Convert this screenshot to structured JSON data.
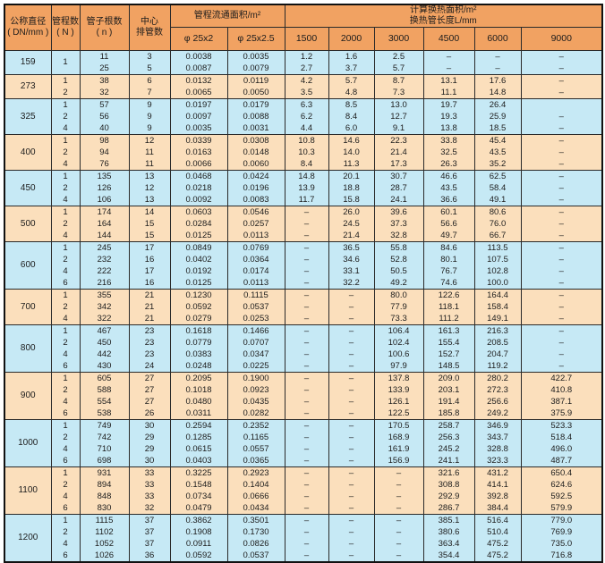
{
  "colors": {
    "header_bg": "#f1a262",
    "row_blue": "#c6e9f5",
    "row_peach": "#fbdfbc",
    "grid_line": "#2a2a2a",
    "text": "#1c1c1c",
    "page_bg": "#ffffff"
  },
  "table": {
    "header": {
      "diameter_line1": "公称直径",
      "diameter_line2": "( DN/mm )",
      "passes_line1": "管程数",
      "passes_line2": "( N )",
      "tubes_line1": "管子根数",
      "tubes_line2": "( n )",
      "center_line1": "中心",
      "center_line2": "排管数",
      "flow_area_title": "管程流通面积/m²",
      "flow_area_cols": [
        "φ 25x2",
        "φ 25x2.5"
      ],
      "heat_area_line1": "计算换热面积/m²",
      "heat_area_line2": "换热管长度L/mm",
      "lengths": [
        "1500",
        "2000",
        "3000",
        "4500",
        "6000",
        "9000"
      ]
    },
    "groups": [
      {
        "dn": "159",
        "tone": "blue",
        "pass_rowspan": 2,
        "rows": [
          [
            "1",
            "11",
            "3",
            "0.0038",
            "0.0035",
            "1.2",
            "1.6",
            "2.5",
            "–",
            "–",
            "–"
          ],
          [
            null,
            "25",
            "5",
            "0.0087",
            "0.0079",
            "2.7",
            "3.7",
            "5.7",
            "–",
            "–",
            "–"
          ]
        ]
      },
      {
        "dn": "273",
        "tone": "peach",
        "rows": [
          [
            "1",
            "38",
            "6",
            "0.0132",
            "0.0119",
            "4.2",
            "5.7",
            "8.7",
            "13.1",
            "17.6",
            "–"
          ],
          [
            "2",
            "32",
            "7",
            "0.0065",
            "0.0050",
            "3.5",
            "4.8",
            "7.3",
            "11.1",
            "14.8",
            "–"
          ]
        ]
      },
      {
        "dn": "325",
        "tone": "blue",
        "rows": [
          [
            "1",
            "57",
            "9",
            "0.0197",
            "0.0179",
            "6.3",
            "8.5",
            "13.0",
            "19.7",
            "26.4",
            ""
          ],
          [
            "2",
            "56",
            "9",
            "0.0097",
            "0.0088",
            "6.2",
            "8.4",
            "12.7",
            "19.3",
            "25.9",
            "–"
          ],
          [
            "4",
            "40",
            "9",
            "0.0035",
            "0.0031",
            "4.4",
            "6.0",
            "9.1",
            "13.8",
            "18.5",
            "–"
          ]
        ]
      },
      {
        "dn": "400",
        "tone": "peach",
        "rows": [
          [
            "1",
            "98",
            "12",
            "0.0339",
            "0.0308",
            "10.8",
            "14.6",
            "22.3",
            "33.8",
            "45.4",
            "–"
          ],
          [
            "2",
            "94",
            "11",
            "0.0163",
            "0.0148",
            "10.3",
            "14.0",
            "21.4",
            "32.5",
            "43.5",
            "–"
          ],
          [
            "4",
            "76",
            "11",
            "0.0066",
            "0.0060",
            "8.4",
            "11.3",
            "17.3",
            "26.3",
            "35.2",
            "–"
          ]
        ]
      },
      {
        "dn": "450",
        "tone": "blue",
        "rows": [
          [
            "1",
            "135",
            "13",
            "0.0468",
            "0.0424",
            "14.8",
            "20.1",
            "30.7",
            "46.6",
            "62.5",
            "–"
          ],
          [
            "2",
            "126",
            "12",
            "0.0218",
            "0.0196",
            "13.9",
            "18.8",
            "28.7",
            "43.5",
            "58.4",
            "–"
          ],
          [
            "4",
            "106",
            "13",
            "0.0092",
            "0.0083",
            "11.7",
            "15.8",
            "24.1",
            "36.6",
            "49.1",
            "–"
          ]
        ]
      },
      {
        "dn": "500",
        "tone": "peach",
        "rows": [
          [
            "1",
            "174",
            "14",
            "0.0603",
            "0.0546",
            "–",
            "26.0",
            "39.6",
            "60.1",
            "80.6",
            "–"
          ],
          [
            "2",
            "164",
            "15",
            "0.0284",
            "0.0257",
            "–",
            "24.5",
            "37.3",
            "56.6",
            "76.0",
            "–"
          ],
          [
            "4",
            "144",
            "15",
            "0.0125",
            "0.0113",
            "–",
            "21.4",
            "32.8",
            "49.7",
            "66.7",
            "–"
          ]
        ]
      },
      {
        "dn": "600",
        "tone": "blue",
        "rows": [
          [
            "1",
            "245",
            "17",
            "0.0849",
            "0.0769",
            "–",
            "36.5",
            "55.8",
            "84.6",
            "113.5",
            "–"
          ],
          [
            "2",
            "232",
            "16",
            "0.0402",
            "0.0364",
            "–",
            "34.6",
            "52.8",
            "80.1",
            "107.5",
            "–"
          ],
          [
            "4",
            "222",
            "17",
            "0.0192",
            "0.0174",
            "–",
            "33.1",
            "50.5",
            "76.7",
            "102.8",
            "–"
          ],
          [
            "6",
            "216",
            "16",
            "0.0125",
            "0.0113",
            "–",
            "32.2",
            "49.2",
            "74.6",
            "100.0",
            "–"
          ]
        ]
      },
      {
        "dn": "700",
        "tone": "peach",
        "rows": [
          [
            "1",
            "355",
            "21",
            "0.1230",
            "0.1115",
            "–",
            "–",
            "80.0",
            "122.6",
            "164.4",
            "–"
          ],
          [
            "2",
            "342",
            "21",
            "0.0592",
            "0.0537",
            "–",
            "–",
            "77.9",
            "118.1",
            "158.4",
            "–"
          ],
          [
            "4",
            "322",
            "21",
            "0.0279",
            "0.0253",
            "–",
            "–",
            "73.3",
            "111.2",
            "149.1",
            "–"
          ]
        ]
      },
      {
        "dn": "800",
        "tone": "blue",
        "rows": [
          [
            "1",
            "467",
            "23",
            "0.1618",
            "0.1466",
            "–",
            "–",
            "106.4",
            "161.3",
            "216.3",
            "–"
          ],
          [
            "2",
            "450",
            "23",
            "0.0779",
            "0.0707",
            "–",
            "–",
            "102.4",
            "155.4",
            "208.5",
            "–"
          ],
          [
            "4",
            "442",
            "23",
            "0.0383",
            "0.0347",
            "–",
            "–",
            "100.6",
            "152.7",
            "204.7",
            "–"
          ],
          [
            "6",
            "430",
            "24",
            "0.0248",
            "0.0225",
            "–",
            "–",
            "97.9",
            "148.5",
            "119.2",
            "–"
          ]
        ]
      },
      {
        "dn": "900",
        "tone": "peach",
        "rows": [
          [
            "1",
            "605",
            "27",
            "0.2095",
            "0.1900",
            "–",
            "–",
            "137.8",
            "209.0",
            "280.2",
            "422.7"
          ],
          [
            "2",
            "588",
            "27",
            "0.1018",
            "0.0923",
            "–",
            "–",
            "133.9",
            "203.1",
            "272.3",
            "410.8"
          ],
          [
            "4",
            "554",
            "27",
            "0.0480",
            "0.0435",
            "–",
            "–",
            "126.1",
            "191.4",
            "256.6",
            "387.1"
          ],
          [
            "6",
            "538",
            "26",
            "0.0311",
            "0.0282",
            "–",
            "–",
            "122.5",
            "185.8",
            "249.2",
            "375.9"
          ]
        ]
      },
      {
        "dn": "1000",
        "tone": "blue",
        "rows": [
          [
            "1",
            "749",
            "30",
            "0.2594",
            "0.2352",
            "–",
            "–",
            "170.5",
            "258.7",
            "346.9",
            "523.3"
          ],
          [
            "2",
            "742",
            "29",
            "0.1285",
            "0.1165",
            "–",
            "–",
            "168.9",
            "256.3",
            "343.7",
            "518.4"
          ],
          [
            "4",
            "710",
            "29",
            "0.0615",
            "0.0557",
            "–",
            "–",
            "161.9",
            "245.2",
            "328.8",
            "496.0"
          ],
          [
            "6",
            "698",
            "30",
            "0.0403",
            "0.0365",
            "–",
            "–",
            "156.9",
            "241.1",
            "323.3",
            "487.7"
          ]
        ]
      },
      {
        "dn": "1100",
        "tone": "peach",
        "rows": [
          [
            "1",
            "931",
            "33",
            "0.3225",
            "0.2923",
            "–",
            "–",
            "–",
            "321.6",
            "431.2",
            "650.4"
          ],
          [
            "2",
            "894",
            "33",
            "0.1548",
            "0.1404",
            "–",
            "–",
            "–",
            "308.8",
            "414.1",
            "624.6"
          ],
          [
            "4",
            "848",
            "33",
            "0.0734",
            "0.0666",
            "–",
            "–",
            "–",
            "292.9",
            "392.8",
            "592.5"
          ],
          [
            "6",
            "830",
            "32",
            "0.0479",
            "0.0434",
            "–",
            "–",
            "–",
            "286.7",
            "384.4",
            "579.9"
          ]
        ]
      },
      {
        "dn": "1200",
        "tone": "blue",
        "rows": [
          [
            "1",
            "1115",
            "37",
            "0.3862",
            "0.3501",
            "–",
            "–",
            "–",
            "385.1",
            "516.4",
            "779.0"
          ],
          [
            "2",
            "1102",
            "37",
            "0.1908",
            "0.1730",
            "–",
            "–",
            "–",
            "380.6",
            "510.4",
            "769.9"
          ],
          [
            "4",
            "1052",
            "37",
            "0.0911",
            "0.0826",
            "–",
            "–",
            "–",
            "363.4",
            "475.2",
            "735.0"
          ],
          [
            "6",
            "1026",
            "36",
            "0.0592",
            "0.0537",
            "–",
            "–",
            "–",
            "354.4",
            "475.2",
            "716.8"
          ]
        ]
      }
    ]
  }
}
